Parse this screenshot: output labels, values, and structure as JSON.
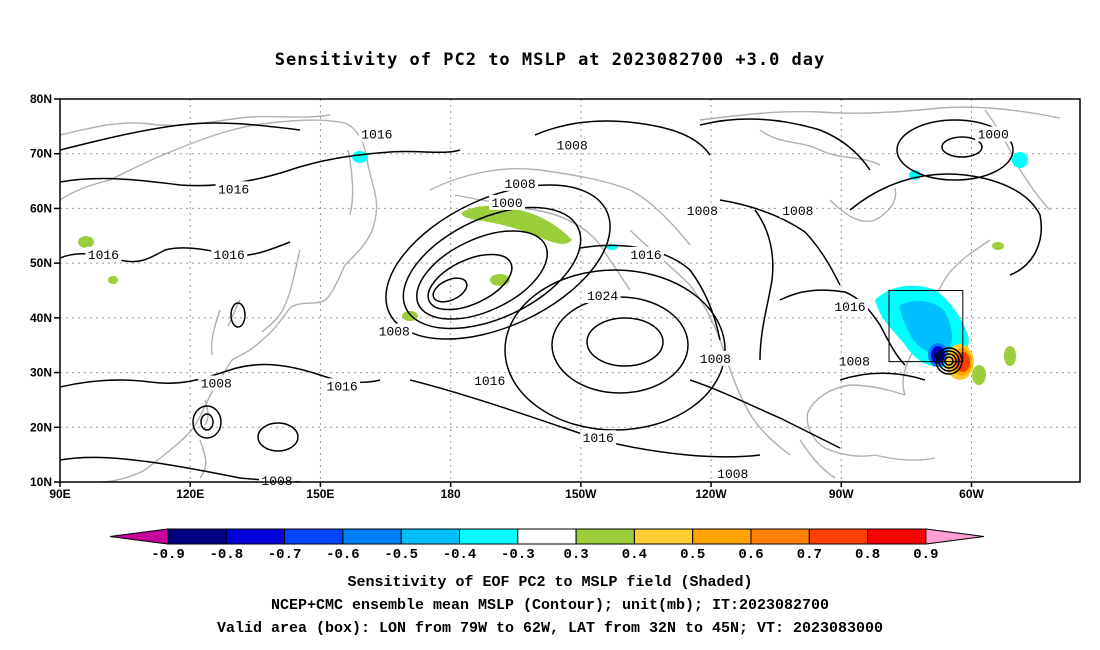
{
  "title": "Sensitivity of PC2 to MSLP at 2023082700 +3.0 day",
  "map": {
    "lat_ticks": [
      "80N",
      "70N",
      "60N",
      "50N",
      "40N",
      "30N",
      "20N",
      "10N"
    ],
    "lon_ticks": [
      "90E",
      "120E",
      "150E",
      "180",
      "150W",
      "120W",
      "90W",
      "60W"
    ],
    "lat_range": [
      10,
      80
    ],
    "lon_range_east_degrees": [
      90,
      325
    ],
    "grid": "dotted",
    "coastline_color": "#b0b0b0",
    "contour_color": "#000000",
    "contour_labels": [
      {
        "text": "1008",
        "lat": 71.5,
        "lon": 208
      },
      {
        "text": "1016",
        "lat": 73.5,
        "lon": 163
      },
      {
        "text": "1000",
        "lat": 73.5,
        "lon": 305
      },
      {
        "text": "1016",
        "lat": 63.5,
        "lon": 130
      },
      {
        "text": "1008",
        "lat": 64.5,
        "lon": 196
      },
      {
        "text": "1000",
        "lat": 61.0,
        "lon": 193
      },
      {
        "text": "1008",
        "lat": 59.5,
        "lon": 238
      },
      {
        "text": "1008",
        "lat": 59.5,
        "lon": 260
      },
      {
        "text": "1016",
        "lat": 51.5,
        "lon": 100
      },
      {
        "text": "1016",
        "lat": 51.5,
        "lon": 129
      },
      {
        "text": "1016",
        "lat": 51.5,
        "lon": 225
      },
      {
        "text": "1024",
        "lat": 44.0,
        "lon": 215
      },
      {
        "text": "1016",
        "lat": 42.0,
        "lon": 272
      },
      {
        "text": "1008",
        "lat": 37.5,
        "lon": 167
      },
      {
        "text": "1008",
        "lat": 32.5,
        "lon": 241
      },
      {
        "text": "1008",
        "lat": 32.0,
        "lon": 273
      },
      {
        "text": "1008",
        "lat": 28.0,
        "lon": 126
      },
      {
        "text": "1016",
        "lat": 27.5,
        "lon": 155
      },
      {
        "text": "1016",
        "lat": 28.5,
        "lon": 189
      },
      {
        "text": "1016",
        "lat": 18.0,
        "lon": 214
      },
      {
        "text": "1008",
        "lat": 11.5,
        "lon": 245
      },
      {
        "text": "1008",
        "lat": 10.2,
        "lon": 140
      }
    ],
    "valid_box": {
      "lon_west": 79,
      "lon_east": 62,
      "lat_south": 32,
      "lat_north": 45
    }
  },
  "colorbar": {
    "labels": [
      "-0.9",
      "-0.8",
      "-0.7",
      "-0.6",
      "-0.5",
      "-0.4",
      "-0.3",
      "0.3",
      "0.4",
      "0.5",
      "0.6",
      "0.7",
      "0.8",
      "0.9"
    ],
    "colors": [
      "#00007f",
      "#0000d8",
      "#0045ff",
      "#0080ff",
      "#00bfff",
      "#00ffff",
      "#ffffff",
      "#9ccd3b",
      "#ffcc33",
      "#ffa500",
      "#ff7f00",
      "#ff3f00",
      "#ff0000"
    ],
    "left_arrow_color": "#c8009c",
    "right_arrow_color": "#ff9ed2"
  },
  "caption": {
    "line1": "Sensitivity of EOF PC2 to MSLP field (Shaded)",
    "line2": "NCEP+CMC ensemble mean MSLP (Contour); unit(mb); IT:2023082700",
    "line3": "Valid area (box): LON from 79W to 62W, LAT from 32N to 45N; VT: 2023083000"
  }
}
